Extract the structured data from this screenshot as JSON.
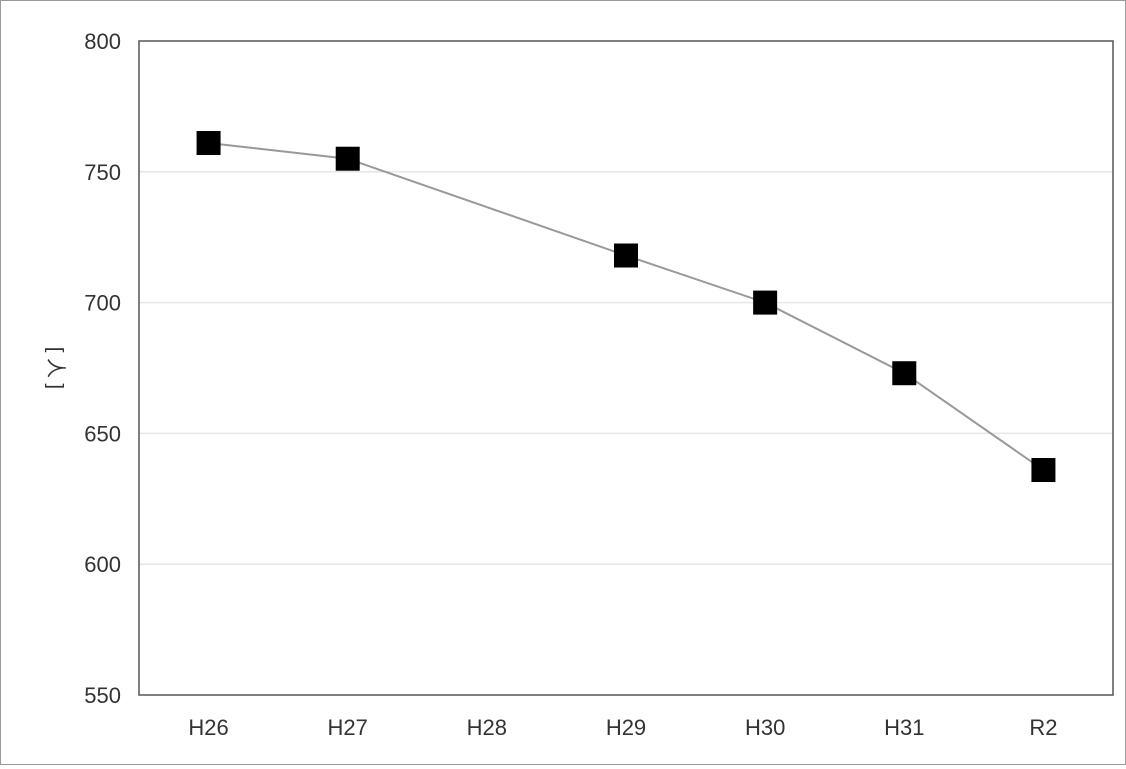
{
  "chart_data": {
    "type": "line",
    "title": "",
    "xlabel": "",
    "ylabel": "[ 人 ]",
    "categories": [
      "H26",
      "H27",
      "H28",
      "H29",
      "H30",
      "H31",
      "R2"
    ],
    "series": [
      {
        "values": [
          761,
          755,
          null,
          718,
          700,
          673,
          636
        ]
      }
    ],
    "ylim": [
      550,
      800
    ],
    "yticks": [
      "800",
      "750",
      "700",
      "650",
      "600",
      "550"
    ],
    "grid": true,
    "legend": "none",
    "colors": {
      "line": "#999999",
      "marker": "#000000",
      "grid": "#e6e6e6",
      "axis": "#555555"
    }
  }
}
